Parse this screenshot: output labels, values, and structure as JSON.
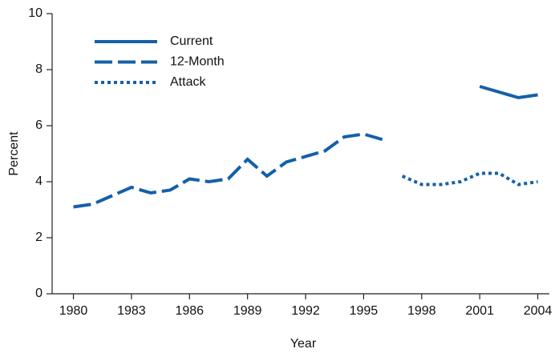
{
  "chart_data": {
    "type": "line",
    "x": [
      1980,
      1981,
      1982,
      1983,
      1984,
      1985,
      1986,
      1987,
      1988,
      1989,
      1990,
      1991,
      1992,
      1993,
      1994,
      1995,
      1996,
      1997,
      1998,
      1999,
      2000,
      2001,
      2002,
      2003,
      2004
    ],
    "series": [
      {
        "name": "Current",
        "color": "#1560a8",
        "linestyle": "solid",
        "values": [
          null,
          null,
          null,
          null,
          null,
          null,
          null,
          null,
          null,
          null,
          null,
          null,
          null,
          null,
          null,
          null,
          null,
          null,
          null,
          null,
          null,
          7.4,
          7.2,
          7.0,
          7.1
        ]
      },
      {
        "name": "12-Month",
        "color": "#1560a8",
        "linestyle": "dashed",
        "values": [
          3.1,
          3.2,
          3.5,
          3.8,
          3.6,
          3.7,
          4.1,
          4.0,
          4.1,
          4.8,
          4.2,
          4.7,
          4.9,
          5.1,
          5.6,
          5.7,
          5.5,
          null,
          null,
          null,
          null,
          null,
          null,
          null,
          null
        ]
      },
      {
        "name": "Attack",
        "color": "#1560a8",
        "linestyle": "dotted",
        "values": [
          null,
          null,
          null,
          null,
          null,
          null,
          null,
          null,
          null,
          null,
          null,
          null,
          null,
          null,
          null,
          null,
          null,
          4.2,
          3.9,
          3.9,
          4.0,
          4.3,
          4.3,
          3.9,
          4.0
        ]
      }
    ],
    "xlabel": "Year",
    "ylabel": "Percent",
    "xlim": [
      1978.9,
      2004.6
    ],
    "xticks": [
      1980,
      1983,
      1986,
      1989,
      1992,
      1995,
      1998,
      2001,
      2004
    ],
    "ylim": [
      0,
      10
    ],
    "yticks": [
      0,
      2,
      4,
      6,
      8,
      10
    ],
    "grid": false,
    "legend": "upper left"
  }
}
